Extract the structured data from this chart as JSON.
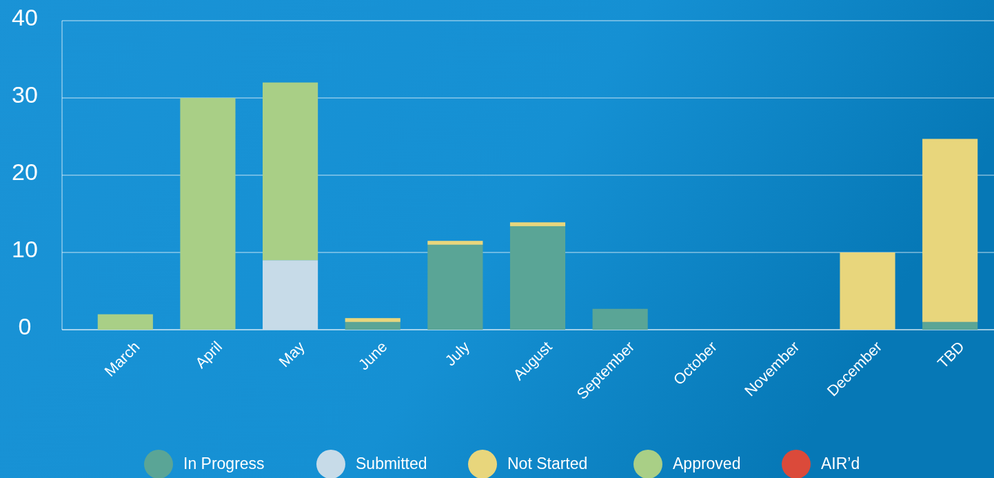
{
  "chart_data": {
    "type": "bar",
    "stacked": true,
    "categories": [
      "March",
      "April",
      "May",
      "June",
      "July",
      "August",
      "September",
      "October",
      "November",
      "December",
      "TBD"
    ],
    "series": [
      {
        "name": "In Progress",
        "color": "#5aa596",
        "values": [
          0,
          0,
          0,
          1,
          11,
          13.4,
          2.7,
          0,
          0,
          0,
          1
        ]
      },
      {
        "name": "Submitted",
        "color": "#c7dbe8",
        "values": [
          0,
          0,
          9,
          0,
          0,
          0,
          0,
          0,
          0,
          0,
          0
        ]
      },
      {
        "name": "Not Started",
        "color": "#e8d67c",
        "values": [
          0,
          0,
          0,
          0.5,
          0.5,
          0.5,
          0,
          0,
          0,
          10,
          23.7
        ]
      },
      {
        "name": "Approved",
        "color": "#a9cf86",
        "values": [
          2,
          30,
          23,
          0,
          0,
          0,
          0,
          0,
          0,
          0,
          0
        ]
      },
      {
        "name": "AIR’d",
        "color": "#db4a3a",
        "values": [
          0,
          0,
          0,
          0,
          0,
          0,
          0,
          0,
          0,
          0,
          0
        ]
      }
    ],
    "ylim": [
      0,
      40
    ],
    "yticks": [
      0,
      10,
      20,
      30,
      40
    ],
    "grid": "y",
    "legend": "bottom"
  }
}
